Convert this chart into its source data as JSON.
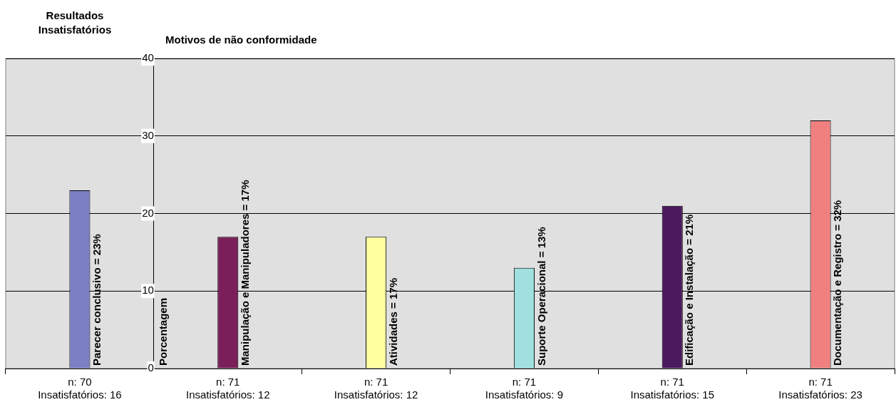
{
  "chart_data": {
    "type": "bar",
    "title": "Motivos de não conformidade",
    "annotations": [
      "Resultados Insatisfatórios"
    ],
    "ylabel": "Porcentagem",
    "categories": [
      "n: 70\nInsatisfatórios: 16",
      "n: 71\nInsatisfatórios: 12",
      "n: 71\nInsatisfatórios: 12",
      "n: 71\nInsatisfatórios: 9",
      "n: 71\nInsatisfatórios: 15",
      "n: 71\nInsatisfatórios: 23"
    ],
    "values": [
      23,
      17,
      17,
      13,
      21,
      32
    ],
    "colors": [
      "#7b7fc4",
      "#7b1f5a",
      "#ffffa0",
      "#a0e0e0",
      "#4b1a5e",
      "#f08080"
    ],
    "value_labels": [
      "Parecer conclusivo = 23%",
      "Manipulação e Manipuladores = 17%",
      "Atividades = 17%",
      "Suporte Operacional = 13%",
      "Edificação e Instalação = 21%",
      "Documentação e Registro = 32%"
    ],
    "ylim": [
      0,
      40
    ],
    "yticks": [
      0,
      10,
      20,
      30,
      40
    ],
    "grid": "y",
    "legend": false
  }
}
